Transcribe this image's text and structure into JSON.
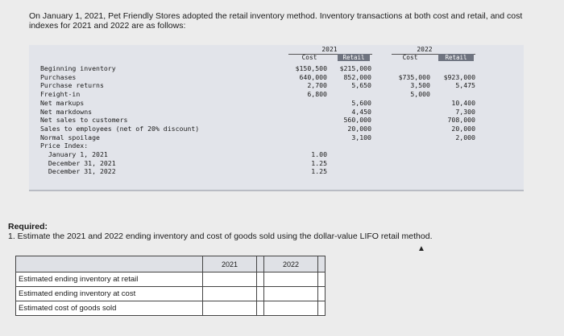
{
  "intro_text": "On January 1, 2021, Pet Friendly Stores adopted the retail inventory method. Inventory transactions at both cost and retail, and cost indexes for 2021 and 2022 are as follows:",
  "header": {
    "year1": "2021",
    "year2": "2022",
    "cost": "Cost",
    "retail": "Retail"
  },
  "row_labels": [
    "Beginning inventory",
    "Purchases",
    "Purchase returns",
    "Freight-in",
    "Net markups",
    "Net markdowns",
    "Net sales to customers",
    "Sales to employees (net of 20% discount)",
    "Normal spoilage",
    "Price Index:",
    "  January 1, 2021",
    "  December 31, 2021",
    "  December 31, 2022"
  ],
  "cost_2021": [
    "$150,500",
    "640,000",
    "2,700",
    "6,800",
    "",
    "",
    "",
    "",
    "",
    "",
    "1.00",
    "1.25",
    "1.25"
  ],
  "retail_2021": [
    "$215,000",
    "852,000",
    "5,650",
    "",
    "5,600",
    "4,450",
    "560,000",
    "20,000",
    "3,100",
    "",
    "",
    "",
    ""
  ],
  "cost_2022": [
    "",
    "$735,000",
    "3,500",
    "5,000",
    "",
    "",
    "",
    "",
    "",
    "",
    "",
    "",
    ""
  ],
  "retail_2022": [
    "",
    "$923,000",
    "5,475",
    "",
    "10,400",
    "7,300",
    "708,000",
    "20,000",
    "2,000",
    "",
    "",
    "",
    ""
  ],
  "required_title": "Required:",
  "required_text": "1. Estimate the 2021 and 2022 ending inventory and cost of goods sold using the dollar-value LIFO retail method.",
  "answer_table": {
    "col1": "2021",
    "col2": "2022",
    "rows": [
      "Estimated ending inventory at retail",
      "Estimated ending inventory at cost",
      "Estimated cost of goods sold"
    ]
  }
}
